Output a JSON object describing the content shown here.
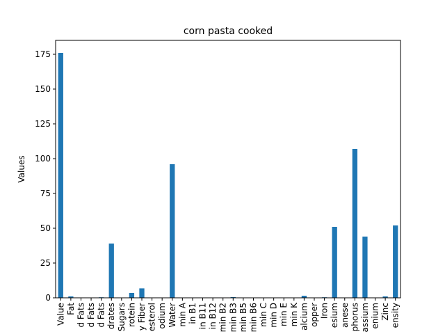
{
  "chart_data": {
    "type": "bar",
    "title": "corn pasta cooked",
    "xlabel": "",
    "ylabel": "Values",
    "ylim": [
      0,
      185
    ],
    "yticks": [
      0,
      25,
      50,
      75,
      100,
      125,
      150,
      175
    ],
    "ytick_labels": [
      "0",
      "25",
      "50",
      "75",
      "100",
      "125",
      "150",
      "175"
    ],
    "bar_color": "#1f77b4",
    "grid": false,
    "legend": "none",
    "categories": [
      "Value",
      "Fat",
      "d Fats",
      "d Fats",
      "d Fats",
      "drates",
      "Sugars",
      "rotein",
      "y Fiber",
      "esterol",
      "odium",
      "Water",
      "min A",
      "in B1",
      "in B11",
      "in B12",
      "min B2",
      "min B3",
      "min B5",
      "min B6",
      "min C",
      "min D",
      "min E",
      "min K",
      "alcium",
      "opper",
      "Iron",
      "esium",
      "anese",
      "phorus",
      "assium",
      "enium",
      "Zinc",
      "ensity"
    ],
    "values": [
      176,
      1.0,
      0.2,
      0.2,
      0.4,
      39,
      0,
      3.5,
      6.8,
      0,
      0,
      96,
      0,
      0,
      0,
      0,
      0.1,
      0.5,
      0.1,
      0.1,
      0,
      0,
      0.1,
      0.1,
      1.5,
      0.1,
      0.4,
      51,
      0.2,
      107,
      44,
      0.1,
      1.0,
      52
    ]
  }
}
